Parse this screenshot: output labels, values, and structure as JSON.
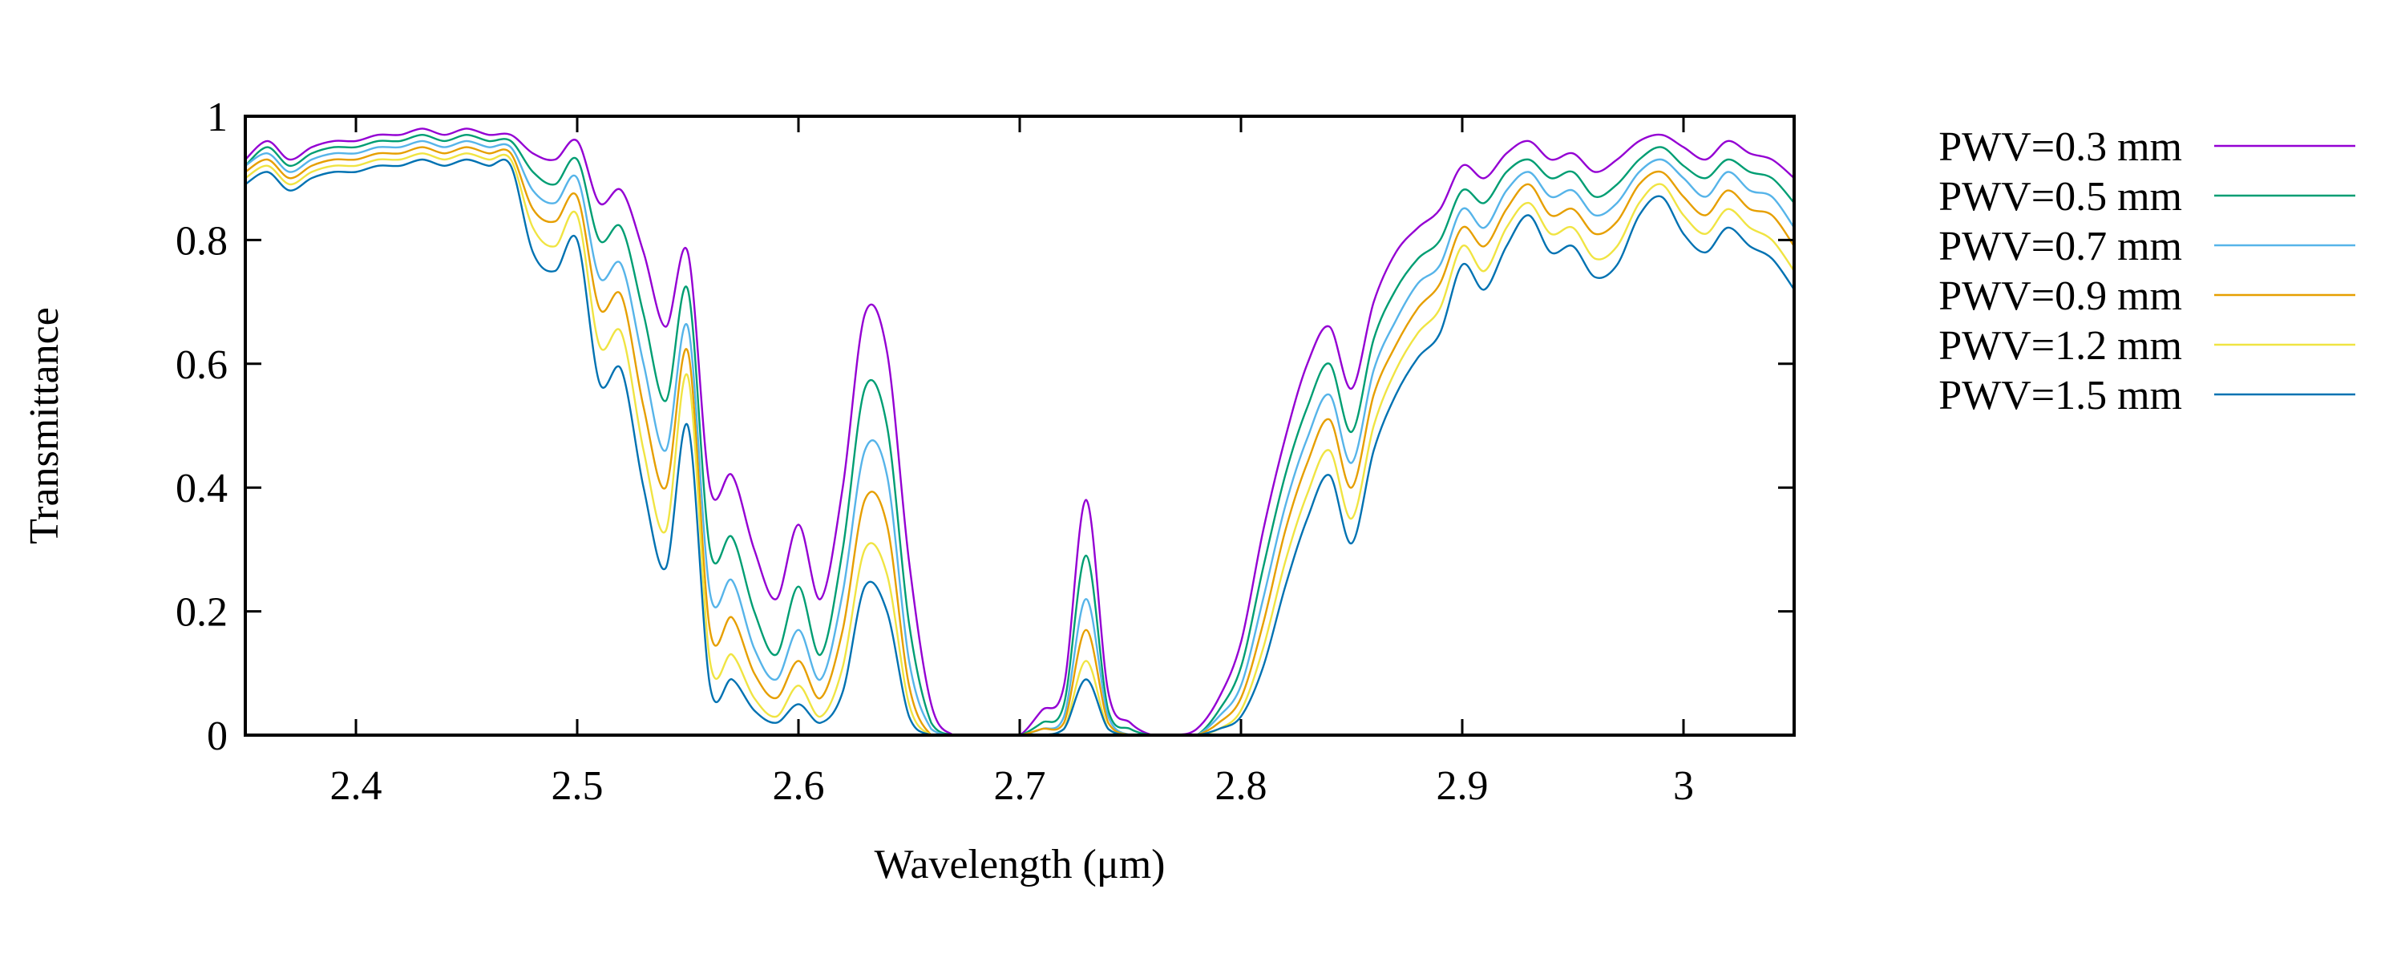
{
  "chart_data": {
    "type": "line",
    "title": "",
    "xlabel": "Wavelength (μm)",
    "ylabel": "Transmittance",
    "xlim": [
      2.35,
      3.05
    ],
    "ylim": [
      0,
      1
    ],
    "xticks": [
      "2.4",
      "2.5",
      "2.6",
      "2.7",
      "2.8",
      "2.9",
      "3"
    ],
    "yticks": [
      "0",
      "0.2",
      "0.4",
      "0.6",
      "0.8",
      "1"
    ],
    "grid": false,
    "legend_position": "outside-right",
    "x": [
      2.35,
      2.36,
      2.37,
      2.38,
      2.39,
      2.4,
      2.41,
      2.42,
      2.43,
      2.44,
      2.45,
      2.46,
      2.47,
      2.48,
      2.49,
      2.5,
      2.51,
      2.52,
      2.53,
      2.54,
      2.55,
      2.56,
      2.57,
      2.58,
      2.59,
      2.6,
      2.61,
      2.62,
      2.63,
      2.64,
      2.65,
      2.66,
      2.67,
      2.68,
      2.69,
      2.7,
      2.71,
      2.72,
      2.73,
      2.74,
      2.75,
      2.76,
      2.77,
      2.78,
      2.79,
      2.8,
      2.81,
      2.82,
      2.83,
      2.84,
      2.85,
      2.86,
      2.87,
      2.88,
      2.89,
      2.9,
      2.91,
      2.92,
      2.93,
      2.94,
      2.95,
      2.96,
      2.97,
      2.98,
      2.99,
      3.0,
      3.01,
      3.02,
      3.03,
      3.04,
      3.05
    ],
    "series": [
      {
        "name": "PWV=0.3 mm",
        "color": "#9400d3",
        "values": [
          0.93,
          0.96,
          0.93,
          0.95,
          0.96,
          0.96,
          0.97,
          0.97,
          0.98,
          0.97,
          0.98,
          0.97,
          0.97,
          0.94,
          0.93,
          0.96,
          0.86,
          0.88,
          0.78,
          0.66,
          0.78,
          0.4,
          0.42,
          0.3,
          0.22,
          0.34,
          0.22,
          0.4,
          0.68,
          0.62,
          0.28,
          0.05,
          0.0,
          0.0,
          0.0,
          0.0,
          0.04,
          0.08,
          0.38,
          0.07,
          0.02,
          0.0,
          0.0,
          0.01,
          0.06,
          0.15,
          0.33,
          0.48,
          0.6,
          0.66,
          0.56,
          0.7,
          0.78,
          0.82,
          0.85,
          0.92,
          0.9,
          0.94,
          0.96,
          0.93,
          0.94,
          0.91,
          0.93,
          0.96,
          0.97,
          0.95,
          0.93,
          0.96,
          0.94,
          0.93,
          0.9
        ]
      },
      {
        "name": "PWV=0.5 mm",
        "color": "#009e73",
        "values": [
          0.92,
          0.95,
          0.92,
          0.94,
          0.95,
          0.95,
          0.96,
          0.96,
          0.97,
          0.96,
          0.97,
          0.96,
          0.96,
          0.91,
          0.89,
          0.93,
          0.8,
          0.82,
          0.68,
          0.54,
          0.72,
          0.3,
          0.32,
          0.2,
          0.13,
          0.24,
          0.13,
          0.3,
          0.56,
          0.5,
          0.18,
          0.02,
          0.0,
          0.0,
          0.0,
          0.0,
          0.02,
          0.05,
          0.29,
          0.04,
          0.01,
          0.0,
          0.0,
          0.0,
          0.04,
          0.11,
          0.27,
          0.42,
          0.53,
          0.6,
          0.49,
          0.64,
          0.72,
          0.77,
          0.8,
          0.88,
          0.86,
          0.91,
          0.93,
          0.9,
          0.91,
          0.87,
          0.89,
          0.93,
          0.95,
          0.92,
          0.9,
          0.93,
          0.91,
          0.9,
          0.86
        ]
      },
      {
        "name": "PWV=0.7 mm",
        "color": "#56b4e9",
        "values": [
          0.92,
          0.94,
          0.91,
          0.93,
          0.94,
          0.94,
          0.95,
          0.95,
          0.96,
          0.95,
          0.96,
          0.95,
          0.95,
          0.88,
          0.86,
          0.9,
          0.74,
          0.76,
          0.6,
          0.46,
          0.66,
          0.23,
          0.25,
          0.14,
          0.09,
          0.17,
          0.09,
          0.23,
          0.46,
          0.42,
          0.12,
          0.01,
          0.0,
          0.0,
          0.0,
          0.0,
          0.01,
          0.03,
          0.22,
          0.03,
          0.0,
          0.0,
          0.0,
          0.0,
          0.03,
          0.08,
          0.22,
          0.37,
          0.48,
          0.55,
          0.44,
          0.59,
          0.67,
          0.73,
          0.76,
          0.85,
          0.82,
          0.88,
          0.91,
          0.87,
          0.88,
          0.84,
          0.86,
          0.91,
          0.93,
          0.9,
          0.87,
          0.91,
          0.88,
          0.87,
          0.82
        ]
      },
      {
        "name": "PWV=0.9 mm",
        "color": "#e69f00",
        "values": [
          0.91,
          0.93,
          0.9,
          0.92,
          0.93,
          0.93,
          0.94,
          0.94,
          0.95,
          0.94,
          0.95,
          0.94,
          0.94,
          0.85,
          0.83,
          0.87,
          0.69,
          0.71,
          0.53,
          0.4,
          0.62,
          0.17,
          0.19,
          0.1,
          0.06,
          0.12,
          0.06,
          0.17,
          0.38,
          0.34,
          0.08,
          0.0,
          0.0,
          0.0,
          0.0,
          0.0,
          0.01,
          0.02,
          0.17,
          0.02,
          0.0,
          0.0,
          0.0,
          0.0,
          0.02,
          0.06,
          0.18,
          0.33,
          0.44,
          0.51,
          0.4,
          0.55,
          0.63,
          0.69,
          0.73,
          0.82,
          0.79,
          0.85,
          0.89,
          0.84,
          0.85,
          0.81,
          0.83,
          0.89,
          0.91,
          0.87,
          0.84,
          0.88,
          0.85,
          0.84,
          0.79
        ]
      },
      {
        "name": "PWV=1.2 mm",
        "color": "#f0e442",
        "values": [
          0.9,
          0.92,
          0.89,
          0.91,
          0.92,
          0.92,
          0.93,
          0.93,
          0.94,
          0.93,
          0.94,
          0.93,
          0.93,
          0.82,
          0.79,
          0.84,
          0.63,
          0.65,
          0.46,
          0.33,
          0.58,
          0.12,
          0.13,
          0.06,
          0.03,
          0.08,
          0.03,
          0.11,
          0.3,
          0.26,
          0.05,
          0.0,
          0.0,
          0.0,
          0.0,
          0.0,
          0.0,
          0.01,
          0.12,
          0.01,
          0.0,
          0.0,
          0.0,
          0.0,
          0.01,
          0.04,
          0.14,
          0.28,
          0.39,
          0.46,
          0.35,
          0.5,
          0.59,
          0.65,
          0.69,
          0.79,
          0.75,
          0.82,
          0.86,
          0.81,
          0.82,
          0.77,
          0.79,
          0.86,
          0.89,
          0.84,
          0.81,
          0.85,
          0.82,
          0.8,
          0.75
        ]
      },
      {
        "name": "PWV=1.5 mm",
        "color": "#0072b2",
        "values": [
          0.89,
          0.91,
          0.88,
          0.9,
          0.91,
          0.91,
          0.92,
          0.92,
          0.93,
          0.92,
          0.93,
          0.92,
          0.92,
          0.78,
          0.75,
          0.8,
          0.57,
          0.59,
          0.4,
          0.27,
          0.5,
          0.08,
          0.09,
          0.04,
          0.02,
          0.05,
          0.02,
          0.07,
          0.24,
          0.2,
          0.03,
          0.0,
          0.0,
          0.0,
          0.0,
          0.0,
          0.0,
          0.01,
          0.09,
          0.01,
          0.0,
          0.0,
          0.0,
          0.0,
          0.01,
          0.03,
          0.11,
          0.24,
          0.35,
          0.42,
          0.31,
          0.46,
          0.55,
          0.61,
          0.65,
          0.76,
          0.72,
          0.79,
          0.84,
          0.78,
          0.79,
          0.74,
          0.76,
          0.84,
          0.87,
          0.81,
          0.78,
          0.82,
          0.79,
          0.77,
          0.72
        ]
      }
    ]
  }
}
